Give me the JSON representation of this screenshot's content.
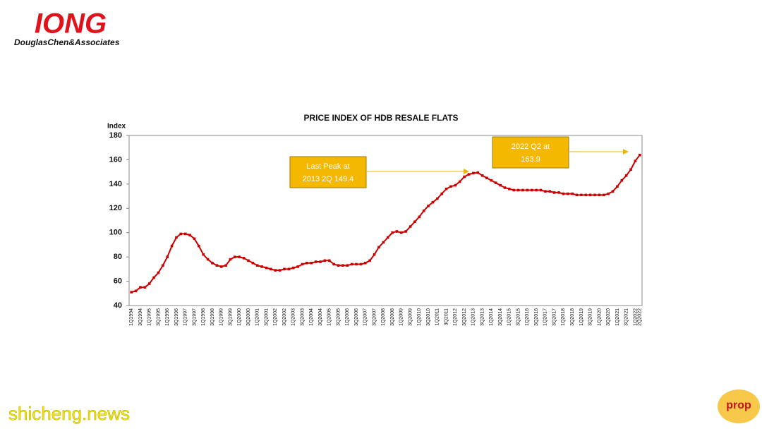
{
  "logo": {
    "mark": "IONG",
    "name": "DouglasChen&Associates"
  },
  "watermark": "shicheng.news",
  "badge": "prop",
  "chart_data": {
    "type": "line",
    "title": "PRICE INDEX OF HDB RESALE FLATS",
    "y_label": "Index",
    "color": "#cc0000",
    "ylim": [
      40,
      180
    ],
    "yticks": [
      40,
      60,
      80,
      100,
      120,
      140,
      160,
      180
    ],
    "categories": [
      "1Q1994",
      null,
      "3Q1994",
      null,
      "1Q1995",
      null,
      "3Q1995",
      null,
      "1Q1996",
      null,
      "3Q1996",
      null,
      "1Q1997",
      null,
      "3Q1997",
      null,
      "1Q1998",
      null,
      "3Q1998",
      null,
      "1Q1999",
      null,
      "3Q1999",
      null,
      "1Q2000",
      null,
      "3Q2000",
      null,
      "1Q2001",
      null,
      "3Q2001",
      null,
      "1Q2002",
      null,
      "3Q2002",
      null,
      "1Q2003",
      null,
      "3Q2003",
      null,
      "1Q2004",
      null,
      "3Q2004",
      null,
      "1Q2005",
      null,
      "3Q2005",
      null,
      "1Q2006",
      null,
      "3Q2006",
      null,
      "1Q2007",
      null,
      "3Q2007",
      null,
      "1Q2008",
      null,
      "3Q2008",
      null,
      "1Q2009",
      null,
      "3Q2009",
      null,
      "1Q2010",
      null,
      "3Q2010",
      null,
      "1Q2011",
      null,
      "3Q2011",
      null,
      "1Q2012",
      null,
      "3Q2012",
      null,
      "1Q2013",
      null,
      "3Q2013",
      null,
      "1Q2014",
      null,
      "3Q2014",
      null,
      "1Q2015",
      null,
      "3Q2015",
      null,
      "1Q2016",
      null,
      "3Q2016",
      null,
      "1Q2017",
      null,
      "3Q2017",
      null,
      "1Q2018",
      null,
      "3Q2018",
      null,
      "1Q2019",
      null,
      "3Q2019",
      null,
      "1Q2020",
      null,
      "3Q2020",
      null,
      "1Q2021",
      null,
      "3Q2021",
      null,
      "1Q2022",
      "2Q2022"
    ],
    "values": [
      51,
      52,
      55,
      55,
      58,
      63,
      67,
      73,
      80,
      89,
      96,
      99,
      99,
      98,
      95,
      89,
      82,
      78,
      75,
      73,
      72,
      73,
      78,
      80,
      80,
      79,
      77,
      75,
      73,
      72,
      71,
      70,
      69,
      69,
      70,
      70,
      71,
      72,
      74,
      75,
      75,
      76,
      76,
      77,
      77,
      74,
      73,
      73,
      73,
      74,
      74,
      74,
      75,
      77,
      82,
      88,
      92,
      96,
      100,
      101,
      100,
      101,
      105,
      109,
      113,
      118,
      122,
      125,
      128,
      132,
      136,
      138,
      139,
      142,
      146,
      148,
      149,
      149.4,
      147,
      145,
      143,
      141,
      139,
      137,
      136,
      135,
      135,
      135,
      135,
      135,
      135,
      135,
      134,
      134,
      133,
      133,
      132,
      132,
      132,
      131,
      131,
      131,
      131,
      131,
      131,
      131,
      132,
      134,
      138,
      143,
      147,
      152,
      159,
      163.9
    ],
    "annotations": [
      {
        "text": [
          "Last Peak at",
          "2013 2Q 149.4"
        ]
      },
      {
        "text": [
          "2022 Q2 at",
          "163.9"
        ]
      }
    ]
  }
}
